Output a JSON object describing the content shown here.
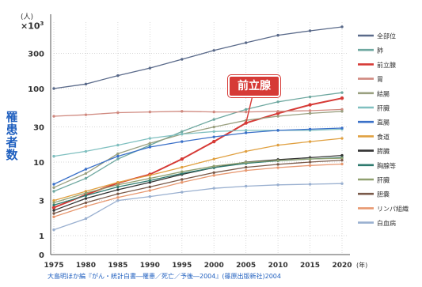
{
  "chart_data": {
    "type": "line",
    "title": "",
    "ylabel": "罹患者数",
    "unit_label": "(人)",
    "multiplier_base": "×10",
    "multiplier_exp": "3",
    "y_scale": "log",
    "ylim": [
      1,
      800
    ],
    "y_ticks": [
      {
        "value": 300,
        "label": "300"
      },
      {
        "value": 100,
        "label": "100"
      },
      {
        "value": 30,
        "label": "30"
      },
      {
        "value": 10,
        "label": "10"
      },
      {
        "value": 3,
        "label": "3"
      },
      {
        "value": 1,
        "label": "1"
      }
    ],
    "zero_label": "0",
    "x": [
      1975,
      1980,
      1985,
      1990,
      1995,
      2000,
      2005,
      2010,
      2015,
      2020
    ],
    "x_tick_labels": [
      "1975",
      "1980",
      "1985",
      "1990",
      "1995",
      "2000",
      "2005",
      "2010",
      "2015",
      "2020"
    ],
    "x_unit": "(年)",
    "callout": {
      "text": "前立腺",
      "series": "前立腺"
    },
    "legend_position": "right",
    "series": [
      {
        "name": "全部位",
        "color": "#5a6a8a",
        "values": [
          100,
          115,
          150,
          190,
          250,
          330,
          420,
          530,
          610,
          690
        ]
      },
      {
        "name": "肺",
        "color": "#6ea8a0",
        "values": [
          4.0,
          6.0,
          11,
          17,
          26,
          38,
          52,
          66,
          77,
          88
        ]
      },
      {
        "name": "前立腺",
        "color": "#d63a36",
        "values": [
          2.4,
          3.6,
          5.2,
          6.8,
          11,
          19,
          34,
          46,
          60,
          74
        ]
      },
      {
        "name": "胃",
        "color": "#d08a80",
        "values": [
          42,
          44,
          47,
          48,
          49,
          48,
          48,
          49,
          50,
          52
        ]
      },
      {
        "name": "結腸",
        "color": "#9aa080",
        "values": [
          4.5,
          7.0,
          13,
          18,
          24,
          30,
          37,
          42,
          46,
          49
        ]
      },
      {
        "name": "肝臓",
        "color": "#80c0c0",
        "values": [
          12,
          14,
          17,
          21,
          24,
          26,
          27,
          27,
          27,
          28
        ]
      },
      {
        "name": "直腸",
        "color": "#3a70c8",
        "values": [
          5.0,
          8.0,
          12,
          16,
          19,
          22,
          25,
          27,
          28,
          29
        ]
      },
      {
        "name": "食道",
        "color": "#e0a040",
        "values": [
          3.0,
          4.0,
          5.3,
          6.6,
          8.5,
          11,
          14,
          17,
          19,
          21
        ]
      },
      {
        "name": "膵臓",
        "color": "#333333",
        "values": [
          2.2,
          3.2,
          4.2,
          5.3,
          6.8,
          8.4,
          10,
          10.8,
          11.5,
          12.3
        ]
      },
      {
        "name": "胸腺等",
        "color": "#2e7a6e",
        "values": [
          2.6,
          3.5,
          4.6,
          5.6,
          7.0,
          8.4,
          9.6,
          10.4,
          11,
          11.5
        ]
      },
      {
        "name": "肝臓",
        "color": "#90a070",
        "values": [
          2.8,
          3.8,
          4.9,
          6.0,
          7.4,
          8.8,
          9.9,
          10.5,
          11,
          11.3
        ]
      },
      {
        "name": "胆嚢",
        "color": "#7a5a4a",
        "values": [
          2.0,
          2.8,
          3.7,
          4.6,
          5.8,
          7.2,
          8.5,
          9.3,
          10,
          10.6
        ]
      },
      {
        "name": "リンパ組織",
        "color": "#e89870",
        "values": [
          1.8,
          2.5,
          3.3,
          4.1,
          5.3,
          6.6,
          7.7,
          8.4,
          9.0,
          9.4
        ]
      },
      {
        "name": "白血病",
        "color": "#9ab0d0",
        "values": [
          1.2,
          1.7,
          3.0,
          3.4,
          3.9,
          4.4,
          4.7,
          4.9,
          5.0,
          5.1
        ]
      }
    ],
    "source": "大島明ほか編『がん・統計白書―罹患／死亡／予後―2004』(篠原出版新社)2004"
  }
}
